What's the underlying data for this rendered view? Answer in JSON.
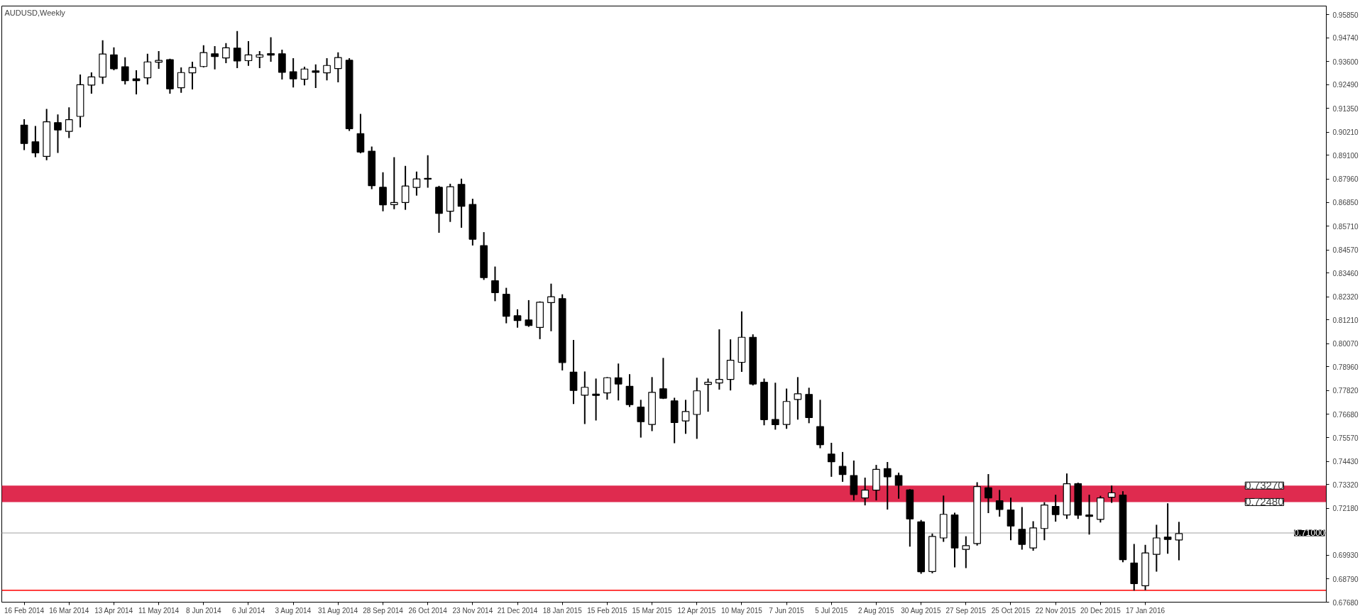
{
  "chart_data": {
    "type": "candlestick",
    "title": "AUDUSD,Weekly",
    "x": [
      "2014-02-16",
      "2014-02-23",
      "2014-03-02",
      "2014-03-09",
      "2014-03-16",
      "2014-03-23",
      "2014-03-30",
      "2014-04-06",
      "2014-04-13",
      "2014-04-20",
      "2014-04-27",
      "2014-05-04",
      "2014-05-11",
      "2014-05-18",
      "2014-05-25",
      "2014-06-01",
      "2014-06-08",
      "2014-06-15",
      "2014-06-22",
      "2014-06-29",
      "2014-07-06",
      "2014-07-13",
      "2014-07-20",
      "2014-07-27",
      "2014-08-03",
      "2014-08-10",
      "2014-08-17",
      "2014-08-24",
      "2014-08-31",
      "2014-09-07",
      "2014-09-14",
      "2014-09-21",
      "2014-09-28",
      "2014-10-05",
      "2014-10-12",
      "2014-10-19",
      "2014-10-26",
      "2014-11-02",
      "2014-11-09",
      "2014-11-16",
      "2014-11-23",
      "2014-11-30",
      "2014-12-07",
      "2014-12-14",
      "2014-12-21",
      "2014-12-28",
      "2015-01-04",
      "2015-01-11",
      "2015-01-18",
      "2015-01-25",
      "2015-02-01",
      "2015-02-08",
      "2015-02-15",
      "2015-02-22",
      "2015-03-01",
      "2015-03-08",
      "2015-03-15",
      "2015-03-22",
      "2015-03-29",
      "2015-04-05",
      "2015-04-12",
      "2015-04-19",
      "2015-04-26",
      "2015-05-03",
      "2015-05-10",
      "2015-05-17",
      "2015-05-24",
      "2015-05-31",
      "2015-06-07",
      "2015-06-14",
      "2015-06-21",
      "2015-06-28",
      "2015-07-05",
      "2015-07-12",
      "2015-07-19",
      "2015-07-26",
      "2015-08-02",
      "2015-08-09",
      "2015-08-16",
      "2015-08-23",
      "2015-08-30",
      "2015-09-06",
      "2015-09-13",
      "2015-09-20",
      "2015-09-27",
      "2015-10-04",
      "2015-10-11",
      "2015-10-18",
      "2015-10-25",
      "2015-11-01",
      "2015-11-08",
      "2015-11-15",
      "2015-11-22",
      "2015-11-29",
      "2015-12-06",
      "2015-12-13",
      "2015-12-20",
      "2015-12-27",
      "2016-01-03",
      "2016-01-10",
      "2016-01-17",
      "2016-01-24",
      "2016-01-31",
      "2016-02-07"
    ],
    "ohlc": [
      [
        0.9055,
        0.9083,
        0.8935,
        0.8967
      ],
      [
        0.8975,
        0.9051,
        0.8901,
        0.8922
      ],
      [
        0.8905,
        0.9133,
        0.8887,
        0.9071
      ],
      [
        0.9067,
        0.9106,
        0.8922,
        0.9032
      ],
      [
        0.9025,
        0.914,
        0.8993,
        0.9081
      ],
      [
        0.9097,
        0.9298,
        0.9044,
        0.9249
      ],
      [
        0.9247,
        0.9308,
        0.9206,
        0.9286
      ],
      [
        0.9285,
        0.9462,
        0.9253,
        0.9396
      ],
      [
        0.9392,
        0.9428,
        0.9318,
        0.9325
      ],
      [
        0.9335,
        0.938,
        0.925,
        0.9268
      ],
      [
        0.9277,
        0.9318,
        0.9202,
        0.9268
      ],
      [
        0.9282,
        0.9397,
        0.925,
        0.9358
      ],
      [
        0.9357,
        0.941,
        0.9325,
        0.9365
      ],
      [
        0.9369,
        0.9373,
        0.9206,
        0.9229
      ],
      [
        0.9234,
        0.9332,
        0.921,
        0.9307
      ],
      [
        0.9306,
        0.9359,
        0.9226,
        0.9331
      ],
      [
        0.9336,
        0.9438,
        0.9332,
        0.9403
      ],
      [
        0.9397,
        0.9434,
        0.9322,
        0.9384
      ],
      [
        0.9377,
        0.9448,
        0.9352,
        0.9426
      ],
      [
        0.9424,
        0.9506,
        0.9328,
        0.9363
      ],
      [
        0.9364,
        0.9458,
        0.9339,
        0.9392
      ],
      [
        0.9381,
        0.941,
        0.9328,
        0.9392
      ],
      [
        0.9398,
        0.9476,
        0.9359,
        0.9391
      ],
      [
        0.9397,
        0.9417,
        0.9274,
        0.9308
      ],
      [
        0.9311,
        0.9376,
        0.9236,
        0.9277
      ],
      [
        0.9275,
        0.9335,
        0.9246,
        0.9324
      ],
      [
        0.9315,
        0.9346,
        0.9233,
        0.9308
      ],
      [
        0.9306,
        0.9376,
        0.927,
        0.9341
      ],
      [
        0.9326,
        0.9404,
        0.926,
        0.9379
      ],
      [
        0.9366,
        0.9376,
        0.9027,
        0.9038
      ],
      [
        0.9014,
        0.9109,
        0.892,
        0.8926
      ],
      [
        0.893,
        0.8952,
        0.8748,
        0.8765
      ],
      [
        0.8757,
        0.8829,
        0.8642,
        0.8673
      ],
      [
        0.8674,
        0.8901,
        0.8652,
        0.8684
      ],
      [
        0.8684,
        0.886,
        0.8649,
        0.8763
      ],
      [
        0.8756,
        0.8832,
        0.8717,
        0.8797
      ],
      [
        0.88,
        0.8911,
        0.8755,
        0.8796
      ],
      [
        0.8757,
        0.8764,
        0.8539,
        0.8632
      ],
      [
        0.8642,
        0.8774,
        0.8591,
        0.876
      ],
      [
        0.8771,
        0.8798,
        0.8563,
        0.8666
      ],
      [
        0.8675,
        0.8702,
        0.8478,
        0.8508
      ],
      [
        0.8477,
        0.8542,
        0.8313,
        0.8324
      ],
      [
        0.8309,
        0.8377,
        0.8211,
        0.8252
      ],
      [
        0.8244,
        0.8275,
        0.8105,
        0.8139
      ],
      [
        0.8141,
        0.8172,
        0.8084,
        0.8118
      ],
      [
        0.8121,
        0.8216,
        0.8088,
        0.8094
      ],
      [
        0.8085,
        0.821,
        0.8029,
        0.8206
      ],
      [
        0.8204,
        0.8295,
        0.8067,
        0.8232
      ],
      [
        0.8223,
        0.8244,
        0.7879,
        0.7917
      ],
      [
        0.7871,
        0.8025,
        0.7718,
        0.7783
      ],
      [
        0.776,
        0.7874,
        0.7622,
        0.7798
      ],
      [
        0.7765,
        0.784,
        0.7639,
        0.7759
      ],
      [
        0.7771,
        0.7847,
        0.7739,
        0.7844
      ],
      [
        0.7844,
        0.7912,
        0.7735,
        0.7814
      ],
      [
        0.7803,
        0.7861,
        0.7704,
        0.7715
      ],
      [
        0.7703,
        0.7738,
        0.7557,
        0.7633
      ],
      [
        0.762,
        0.7847,
        0.7588,
        0.7774
      ],
      [
        0.7791,
        0.7939,
        0.7742,
        0.7746
      ],
      [
        0.7733,
        0.7748,
        0.753,
        0.7629
      ],
      [
        0.7637,
        0.7738,
        0.7575,
        0.7682
      ],
      [
        0.7668,
        0.7844,
        0.7551,
        0.7781
      ],
      [
        0.7812,
        0.784,
        0.7681,
        0.7822
      ],
      [
        0.7819,
        0.8076,
        0.7787,
        0.7836
      ],
      [
        0.7836,
        0.8028,
        0.7783,
        0.7928
      ],
      [
        0.7918,
        0.8162,
        0.7872,
        0.8038
      ],
      [
        0.8038,
        0.8052,
        0.7807,
        0.7814
      ],
      [
        0.7822,
        0.784,
        0.7616,
        0.7643
      ],
      [
        0.7644,
        0.782,
        0.7595,
        0.7619
      ],
      [
        0.762,
        0.7792,
        0.7599,
        0.773
      ],
      [
        0.774,
        0.7847,
        0.7643,
        0.7767
      ],
      [
        0.7764,
        0.7796,
        0.7626,
        0.7653
      ],
      [
        0.761,
        0.7738,
        0.7506,
        0.7523
      ],
      [
        0.7478,
        0.7532,
        0.7369,
        0.7441
      ],
      [
        0.7419,
        0.7488,
        0.7345,
        0.738
      ],
      [
        0.7375,
        0.7447,
        0.7256,
        0.7284
      ],
      [
        0.7268,
        0.7365,
        0.7232,
        0.7305
      ],
      [
        0.7305,
        0.7426,
        0.7256,
        0.7405
      ],
      [
        0.7408,
        0.744,
        0.7212,
        0.7369
      ],
      [
        0.7375,
        0.7389,
        0.7264,
        0.7328
      ],
      [
        0.7306,
        0.731,
        0.7034,
        0.7167
      ],
      [
        0.7153,
        0.7162,
        0.6904,
        0.6914
      ],
      [
        0.6915,
        0.7097,
        0.6907,
        0.7083
      ],
      [
        0.7076,
        0.7279,
        0.7057,
        0.7189
      ],
      [
        0.7186,
        0.7197,
        0.6935,
        0.7028
      ],
      [
        0.7021,
        0.7084,
        0.6931,
        0.7039
      ],
      [
        0.7049,
        0.7343,
        0.7039,
        0.7322
      ],
      [
        0.7316,
        0.7382,
        0.7195,
        0.7268
      ],
      [
        0.7254,
        0.7306,
        0.7178,
        0.7212
      ],
      [
        0.721,
        0.7269,
        0.7065,
        0.7133
      ],
      [
        0.7117,
        0.7224,
        0.702,
        0.7045
      ],
      [
        0.7028,
        0.7156,
        0.7015,
        0.7124
      ],
      [
        0.7121,
        0.7247,
        0.7065,
        0.7234
      ],
      [
        0.7227,
        0.7283,
        0.7154,
        0.7188
      ],
      [
        0.7186,
        0.7385,
        0.7167,
        0.7336
      ],
      [
        0.7336,
        0.7341,
        0.7167,
        0.7185
      ],
      [
        0.7186,
        0.7283,
        0.7092,
        0.7179
      ],
      [
        0.7165,
        0.7278,
        0.715,
        0.7268
      ],
      [
        0.7271,
        0.7327,
        0.7244,
        0.7292
      ],
      [
        0.7281,
        0.73,
        0.6959,
        0.6972
      ],
      [
        0.6956,
        0.7047,
        0.6823,
        0.6857
      ],
      [
        0.6847,
        0.7043,
        0.6825,
        0.7004
      ],
      [
        0.6997,
        0.7139,
        0.6914,
        0.7076
      ],
      [
        0.708,
        0.7242,
        0.7,
        0.7069
      ],
      [
        0.7066,
        0.7153,
        0.6969,
        0.7097
      ]
    ],
    "xlim": [
      "2014-02-02",
      "2016-05-09"
    ],
    "xticks": [
      {
        "value": "2014-02-16",
        "label": "16 Feb 2014"
      },
      {
        "value": "2014-03-16",
        "label": "16 Mar 2014"
      },
      {
        "value": "2014-04-13",
        "label": "13 Apr 2014"
      },
      {
        "value": "2014-05-11",
        "label": "11 May 2014"
      },
      {
        "value": "2014-06-08",
        "label": "8 Jun 2014"
      },
      {
        "value": "2014-07-06",
        "label": "6 Jul 2014"
      },
      {
        "value": "2014-08-03",
        "label": "3 Aug 2014"
      },
      {
        "value": "2014-08-31",
        "label": "31 Aug 2014"
      },
      {
        "value": "2014-09-28",
        "label": "28 Sep 2014"
      },
      {
        "value": "2014-10-26",
        "label": "26 Oct 2014"
      },
      {
        "value": "2014-11-23",
        "label": "23 Nov 2014"
      },
      {
        "value": "2014-12-21",
        "label": "21 Dec 2014"
      },
      {
        "value": "2015-01-18",
        "label": "18 Jan 2015"
      },
      {
        "value": "2015-02-15",
        "label": "15 Feb 2015"
      },
      {
        "value": "2015-03-15",
        "label": "15 Mar 2015"
      },
      {
        "value": "2015-04-12",
        "label": "12 Apr 2015"
      },
      {
        "value": "2015-05-10",
        "label": "10 May 2015"
      },
      {
        "value": "2015-06-07",
        "label": "7 Jun 2015"
      },
      {
        "value": "2015-07-05",
        "label": "5 Jul 2015"
      },
      {
        "value": "2015-08-02",
        "label": "2 Aug 2015"
      },
      {
        "value": "2015-08-30",
        "label": "30 Aug 2015"
      },
      {
        "value": "2015-09-27",
        "label": "27 Sep 2015"
      },
      {
        "value": "2015-10-25",
        "label": "25 Oct 2015"
      },
      {
        "value": "2015-11-22",
        "label": "22 Nov 2015"
      },
      {
        "value": "2015-12-20",
        "label": "20 Dec 2015"
      },
      {
        "value": "2016-01-17",
        "label": "17 Jan 2016"
      }
    ],
    "ylim": [
      0.6768,
      0.9626
    ],
    "yticks": [
      {
        "value": 0.9585,
        "label": "0.95850"
      },
      {
        "value": 0.9474,
        "label": "0.94740"
      },
      {
        "value": 0.936,
        "label": "0.93600"
      },
      {
        "value": 0.9249,
        "label": "0.92490"
      },
      {
        "value": 0.9135,
        "label": "0.91350"
      },
      {
        "value": 0.9021,
        "label": "0.90210"
      },
      {
        "value": 0.891,
        "label": "0.89100"
      },
      {
        "value": 0.8796,
        "label": "0.87960"
      },
      {
        "value": 0.8685,
        "label": "0.86850"
      },
      {
        "value": 0.8571,
        "label": "0.85710"
      },
      {
        "value": 0.8457,
        "label": "0.84570"
      },
      {
        "value": 0.8346,
        "label": "0.83460"
      },
      {
        "value": 0.8232,
        "label": "0.82320"
      },
      {
        "value": 0.8121,
        "label": "0.81210"
      },
      {
        "value": 0.8007,
        "label": "0.80070"
      },
      {
        "value": 0.7896,
        "label": "0.78960"
      },
      {
        "value": 0.7782,
        "label": "0.77820"
      },
      {
        "value": 0.7668,
        "label": "0.76680"
      },
      {
        "value": 0.7557,
        "label": "0.75570"
      },
      {
        "value": 0.7443,
        "label": "0.74430"
      },
      {
        "value": 0.7332,
        "label": "0.73320"
      },
      {
        "value": 0.7218,
        "label": "0.72180"
      },
      {
        "value": 0.6993,
        "label": "0.69930"
      },
      {
        "value": 0.6879,
        "label": "0.68790"
      },
      {
        "value": 0.6768,
        "label": "0.67680"
      }
    ],
    "ref_lines": [
      {
        "axis": "y",
        "value": 0.71,
        "label": "0.71000",
        "color": "#c0c0c0"
      },
      {
        "axis": "y",
        "value": 0.6825,
        "color": "#ff0000"
      }
    ],
    "bands": [
      {
        "axis": "y",
        "from": 0.7248,
        "to": 0.7327,
        "color": "#dc143c"
      }
    ],
    "annotations": [
      {
        "text": "0.73270",
        "y": 0.7327
      },
      {
        "text": "0.72480",
        "y": 0.7248
      }
    ],
    "grid": false
  }
}
